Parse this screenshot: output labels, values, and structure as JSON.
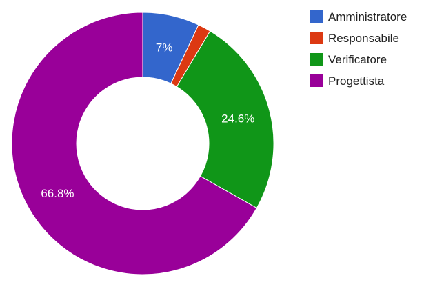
{
  "chart_data": {
    "type": "pie",
    "donut": true,
    "legend_position": "right",
    "series": [
      {
        "name": "Amministratore",
        "value": 7.0,
        "color": "#3366cc",
        "label": "7%"
      },
      {
        "name": "Responsabile",
        "value": 1.6,
        "color": "#dc3912",
        "label": ""
      },
      {
        "name": "Verificatore",
        "value": 24.6,
        "color": "#109618",
        "label": "24.6%"
      },
      {
        "name": "Progettista",
        "value": 66.8,
        "color": "#990099",
        "label": "66.8%"
      }
    ]
  }
}
